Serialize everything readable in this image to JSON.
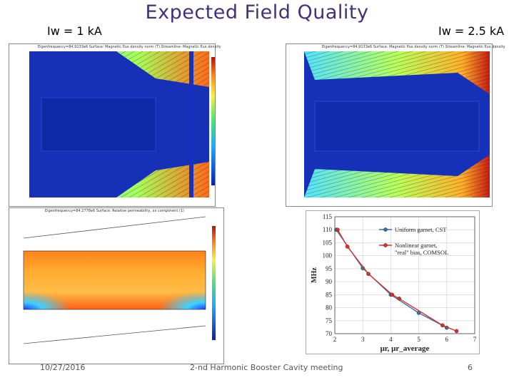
{
  "slide": {
    "title": "Expected Field Quality",
    "label_left": "Iw = 1 kA",
    "label_right": "Iw = 2.5 kA",
    "footer_date": "10/27/2016",
    "footer_center": "2-nd Harmonic Booster Cavity meeting",
    "page_number": "6"
  },
  "panels": {
    "top_left_caption": "Eigenfrequency=84.9133e6  Surface: Magnetic flux density norm (T)  Streamline: Magnetic flux density",
    "top_right_caption": "Eigenfrequency=84.9133e6  Surface: Magnetic flux density norm (T)  Streamline: Magnetic flux density",
    "bottom_left_caption": "Eigenfrequency=84.2778e6  Surface: Relative permeability, xx component (1)"
  },
  "chart_data": {
    "type": "line",
    "xlabel": "μr, μr_average",
    "ylabel": "MHz",
    "xlim": [
      2,
      7
    ],
    "ylim": [
      70,
      115
    ],
    "x_ticks": [
      2,
      3,
      4,
      5,
      6,
      7
    ],
    "y_ticks": [
      70,
      75,
      80,
      85,
      90,
      95,
      100,
      105,
      110,
      115
    ],
    "grid": true,
    "legend_position": "top-right",
    "series": [
      {
        "name": "Uniform garnet, CST",
        "color": "#3a6fa8",
        "marker": "circle",
        "x": [
          2.05,
          3.0,
          4.0,
          5.0,
          6.0
        ],
        "y": [
          110,
          95.2,
          85,
          78,
          72.3
        ]
      },
      {
        "name": "Nonlinear garnet, \"real\" bias, COMSOL",
        "color": "#d9302a",
        "marker": "circle",
        "x": [
          2.1,
          2.45,
          3.2,
          4.05,
          4.3,
          5.85,
          6.35
        ],
        "y": [
          110,
          103.5,
          93,
          85,
          83.5,
          73.2,
          71
        ]
      }
    ]
  }
}
